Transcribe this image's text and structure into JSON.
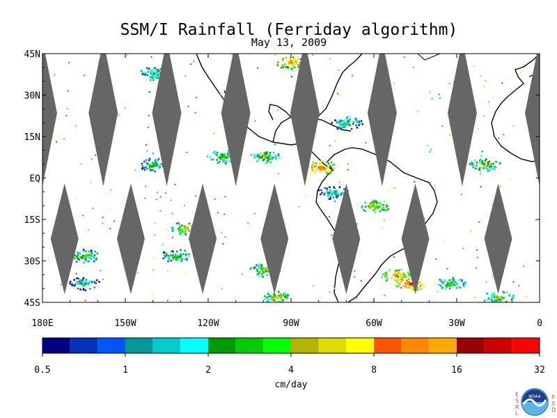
{
  "title": "SSM/I Rainfall (Ferriday algorithm)",
  "subtitle": "May 13, 2009",
  "map": {
    "lat_labels": [
      "45N",
      "30N",
      "15N",
      "EQ",
      "15S",
      "30S",
      "45S"
    ],
    "lat_values": [
      45,
      30,
      15,
      0,
      -15,
      -30,
      -45
    ],
    "lon_labels": [
      "180E",
      "150W",
      "120W",
      "90W",
      "60W",
      "30W",
      "0"
    ],
    "lon_values": [
      -180,
      -150,
      -120,
      -90,
      -60,
      -30,
      0
    ],
    "lon_range": [
      -180,
      0
    ],
    "lat_range": [
      -45,
      45
    ],
    "nodata_color": "#666666",
    "swath_gap_centers_lon": [
      -180,
      -158,
      -135,
      -110,
      -85,
      -57,
      -28,
      0,
      -172,
      -148,
      -122,
      -96,
      -70,
      -45,
      -15
    ],
    "rain_cells": [
      {
        "lon": -128,
        "lat": -18,
        "level": 10
      },
      {
        "lon": -132,
        "lat": -28,
        "level": 8
      },
      {
        "lon": -100,
        "lat": -33,
        "level": 9
      },
      {
        "lon": -47,
        "lat": -38,
        "level": 15
      },
      {
        "lon": -52,
        "lat": -35,
        "level": 12
      },
      {
        "lon": -79,
        "lat": 4,
        "level": 14
      },
      {
        "lon": -100,
        "lat": 8,
        "level": 9
      },
      {
        "lon": -115,
        "lat": 8,
        "level": 8
      },
      {
        "lon": -140,
        "lat": 5,
        "level": 7
      },
      {
        "lon": -165,
        "lat": -28,
        "level": 8
      },
      {
        "lon": -165,
        "lat": -38,
        "level": 6
      },
      {
        "lon": -90,
        "lat": 42,
        "level": 12
      },
      {
        "lon": -140,
        "lat": 38,
        "level": 7
      },
      {
        "lon": -70,
        "lat": 20,
        "level": 7
      },
      {
        "lon": -60,
        "lat": -10,
        "level": 10
      },
      {
        "lon": -20,
        "lat": 5,
        "level": 9
      },
      {
        "lon": -15,
        "lat": -43,
        "level": 9
      },
      {
        "lon": -32,
        "lat": -38,
        "level": 8
      },
      {
        "lon": -95,
        "lat": -43,
        "level": 10
      },
      {
        "lon": -75,
        "lat": -5,
        "level": 6
      }
    ]
  },
  "colorbar": {
    "colors": [
      "#000080",
      "#0033bb",
      "#0055ff",
      "#009999",
      "#00cccc",
      "#00ffff",
      "#009900",
      "#00cc00",
      "#00ff00",
      "#b3b300",
      "#dddd00",
      "#ffff00",
      "#ff5500",
      "#ff8800",
      "#ffaa00",
      "#990000",
      "#cc0000",
      "#ff0000"
    ],
    "tick_labels": [
      "0.5",
      "1",
      "2",
      "4",
      "8",
      "16",
      "32"
    ],
    "unit_label": "cm/day"
  },
  "logo": {
    "text": "NOAA",
    "left_letters": [
      "E",
      "S",
      "R",
      "L"
    ],
    "right_letters": [
      "P",
      "S",
      "D"
    ]
  }
}
